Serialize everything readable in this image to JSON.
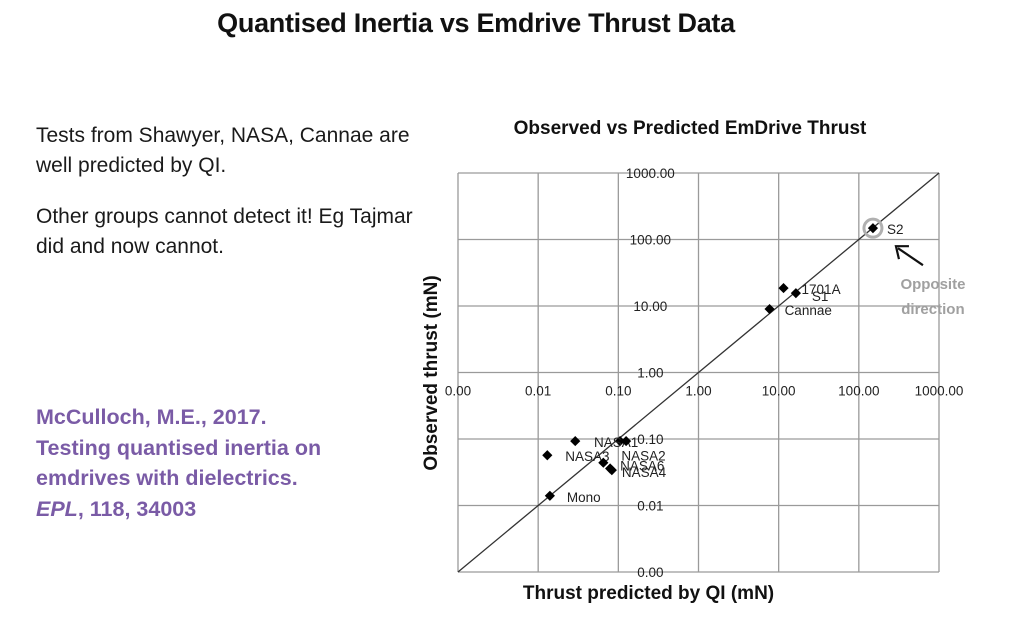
{
  "slide": {
    "title": "Quantised Inertia vs Emdrive Thrust Data",
    "bullets": [
      "Tests from Shawyer, NASA, Cannae are well predicted by QI.",
      "Other groups cannot detect it! Eg Tajmar did and now cannot."
    ],
    "citation": {
      "authors": "McCulloch, M.E., 2017.",
      "title": "Testing quantised inertia on emdrives with dielectrics.",
      "journal": "EPL",
      "volume_pages": ", 118, 34003"
    },
    "accent_color": "#7a5ba6"
  },
  "chart_data": {
    "type": "scatter",
    "title": "Observed vs Predicted EmDrive Thrust",
    "xlabel": "Thrust predicted by QI (mN)",
    "ylabel": "Observed thrust (mN)",
    "x_scale": "log",
    "y_scale": "log",
    "xlim": [
      0.001,
      1000
    ],
    "ylim": [
      0.001,
      1000
    ],
    "x_tick_labels": [
      "0.00",
      "0.01",
      "0.10",
      "1.00",
      "10.00",
      "100.00",
      "1000.00"
    ],
    "y_tick_labels": [
      "0.00",
      "0.01",
      "0.10",
      "1.00",
      "10.00",
      "100.00",
      "1000.00"
    ],
    "grid": true,
    "reference_line": "y = x",
    "points": [
      {
        "label": "S2",
        "x": 150,
        "y": 148,
        "highlighted": true
      },
      {
        "label": "1701A",
        "x": 11.5,
        "y": 18.6
      },
      {
        "label": "S1",
        "x": 16.4,
        "y": 15.6
      },
      {
        "label": "Cannae",
        "x": 7.7,
        "y": 9.0
      },
      {
        "label": "",
        "x": 0.029,
        "y": 0.093
      },
      {
        "label": "NASA1",
        "x": 0.105,
        "y": 0.093
      },
      {
        "label": "",
        "x": 0.125,
        "y": 0.093
      },
      {
        "label": "NASA3",
        "x": 0.013,
        "y": 0.057
      },
      {
        "label": "NASA2",
        "x": 0.065,
        "y": 0.044
      },
      {
        "label": "NASA5/6",
        "x": 0.079,
        "y": 0.036
      },
      {
        "label": "NASA4",
        "x": 0.083,
        "y": 0.034
      },
      {
        "label": "Mono",
        "x": 0.014,
        "y": 0.014
      }
    ],
    "annotation": {
      "text_line1": "Opposite",
      "text_line2": "direction",
      "target": "S2",
      "color": "#a0a0a0"
    }
  }
}
